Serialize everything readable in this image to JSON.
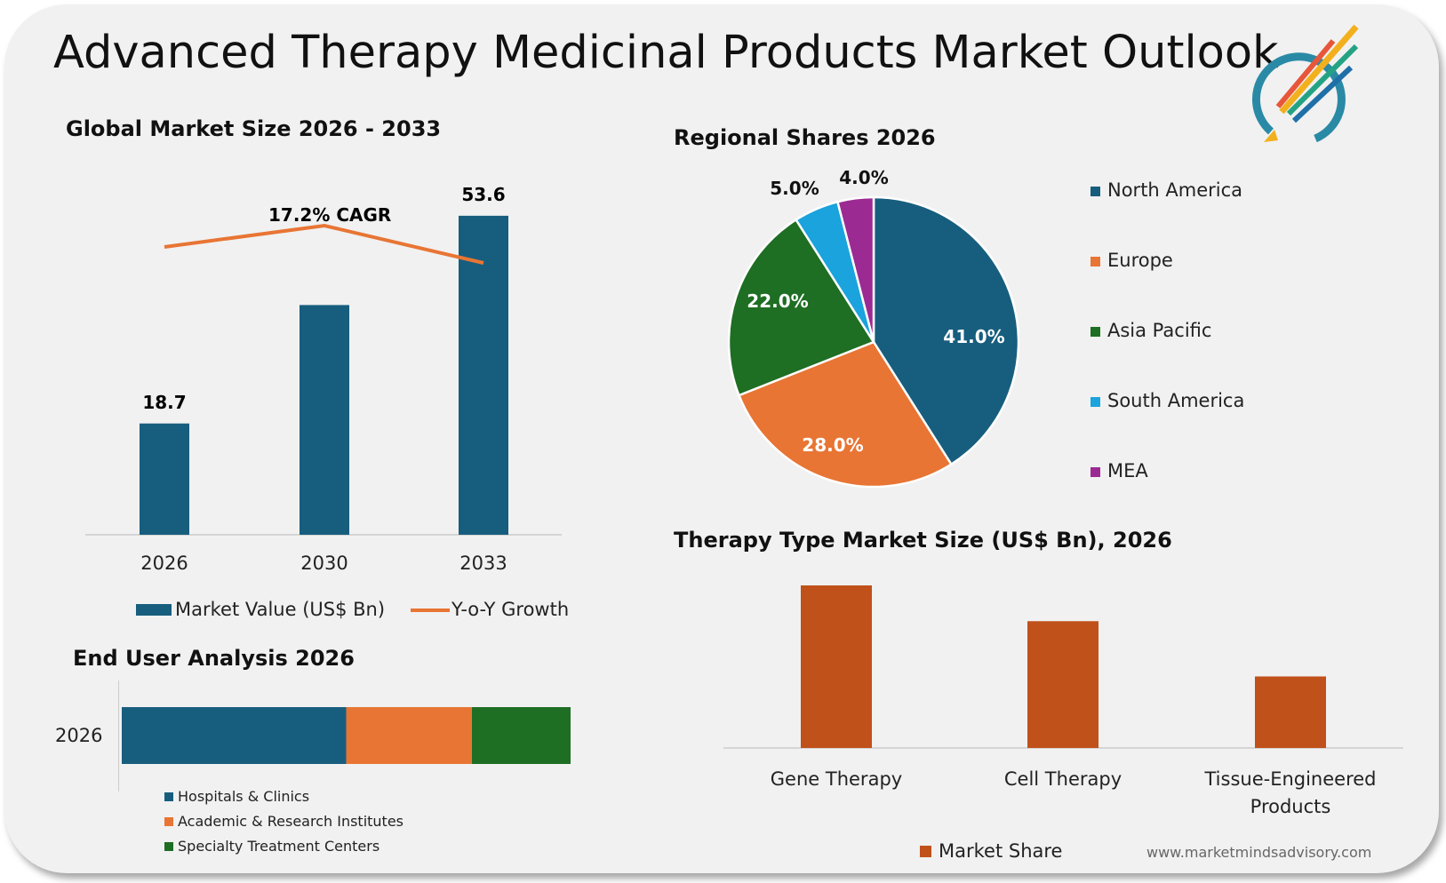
{
  "title": "Advanced Therapy Medicinal Products Market Outlook",
  "logo": {
    "name": "market-minds-advisory-logo",
    "colors": [
      "#2a8aa6",
      "#f2b01e",
      "#e8563a",
      "#23a383",
      "#1f6fa8"
    ]
  },
  "website": "www.marketmindsadvisory.com",
  "colors": {
    "blue": "#175e7e",
    "orange": "#e87534",
    "green": "#1e6e23",
    "lightblue": "#1aa3dc",
    "purple": "#9b2a93",
    "rust": "#c0511a"
  },
  "chart_data": [
    {
      "type": "bar",
      "title": "Global Market Size 2026 - 2033",
      "categories": [
        "2026",
        "2030",
        "2033"
      ],
      "series": [
        {
          "name": "Market Value (US$ Bn)",
          "values": [
            18.7,
            38.6,
            53.6
          ],
          "data_labels": [
            "18.7",
            "",
            "53.6"
          ]
        },
        {
          "name": "Y-o-Y Growth",
          "type": "line",
          "relative_values": [
            0.35,
            0.55,
            0.2
          ]
        }
      ],
      "annotation": "17.2% CAGR",
      "ylim": [
        0,
        60
      ]
    },
    {
      "type": "pie",
      "title": "Regional Shares 2026",
      "labels": [
        "North America",
        "Europe",
        "Asia Pacific",
        "South America",
        "MEA"
      ],
      "values": [
        41.0,
        28.0,
        22.0,
        5.0,
        4.0
      ],
      "data_labels": [
        "41.0%",
        "28.0%",
        "22.0%",
        "5.0%",
        "4.0%"
      ],
      "legend": "right"
    },
    {
      "type": "bar",
      "title": "Therapy Type Market Size (US$ Bn), 2026",
      "categories": [
        "Gene Therapy",
        "Cell Therapy",
        "Tissue-Engineered Products"
      ],
      "series": [
        {
          "name": "Market Share",
          "relative_values": [
            100,
            78,
            44
          ]
        }
      ],
      "legend": "bottom"
    },
    {
      "type": "bar",
      "orientation": "horizontal-stacked",
      "title": "End User Analysis 2026",
      "categories": [
        "2026"
      ],
      "series": [
        {
          "name": "Hospitals & Clinics",
          "values": [
            50
          ]
        },
        {
          "name": "Academic & Research Institutes",
          "values": [
            28
          ]
        },
        {
          "name": "Specialty Treatment Centers",
          "values": [
            22
          ]
        }
      ],
      "legend": "bottom"
    }
  ]
}
